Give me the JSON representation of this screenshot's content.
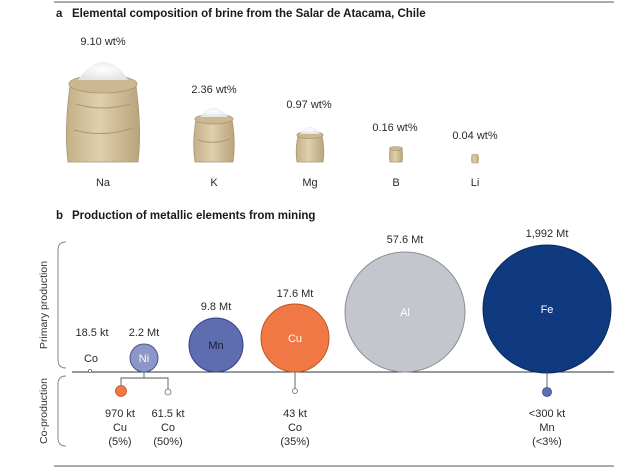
{
  "panel_a": {
    "letter": "a",
    "title": "Elemental composition of brine from the Salar de Atacama, Chile",
    "items": [
      {
        "element": "Na",
        "value": "9.10 wt%"
      },
      {
        "element": "K",
        "value": "2.36 wt%"
      },
      {
        "element": "Mg",
        "value": "0.97 wt%"
      },
      {
        "element": "B",
        "value": "0.16 wt%"
      },
      {
        "element": "Li",
        "value": "0.04 wt%"
      }
    ]
  },
  "panel_b": {
    "letter": "b",
    "title": "Production of metallic elements from mining",
    "primary_label": "Primary production",
    "co_label": "Co-production",
    "primary": [
      {
        "element": "Co",
        "value": "18.5 kt",
        "color": "#ffffff"
      },
      {
        "element": "Ni",
        "value": "2.2 Mt",
        "color": "#8c96c8"
      },
      {
        "element": "Mn",
        "value": "9.8 Mt",
        "color": "#5e6db0"
      },
      {
        "element": "Cu",
        "value": "17.6 Mt",
        "color": "#f07844"
      },
      {
        "element": "Al",
        "value": "57.6 Mt",
        "color": "#c3c6cc"
      },
      {
        "element": "Fe",
        "value": "1,992 Mt",
        "color": "#0f3a80"
      }
    ],
    "coproduction": [
      {
        "value": "970 kt",
        "element": "Cu",
        "share": "(5%)",
        "color": "#f07844"
      },
      {
        "value": "61.5 kt",
        "element": "Co",
        "share": "(50%)",
        "color": "#ffffff"
      },
      {
        "value": "43 kt",
        "element": "Co",
        "share": "(35%)",
        "color": "#ffffff"
      },
      {
        "value": "<300 kt",
        "element": "Mn",
        "share": "(<3%)",
        "color": "#5e6db0"
      }
    ]
  }
}
